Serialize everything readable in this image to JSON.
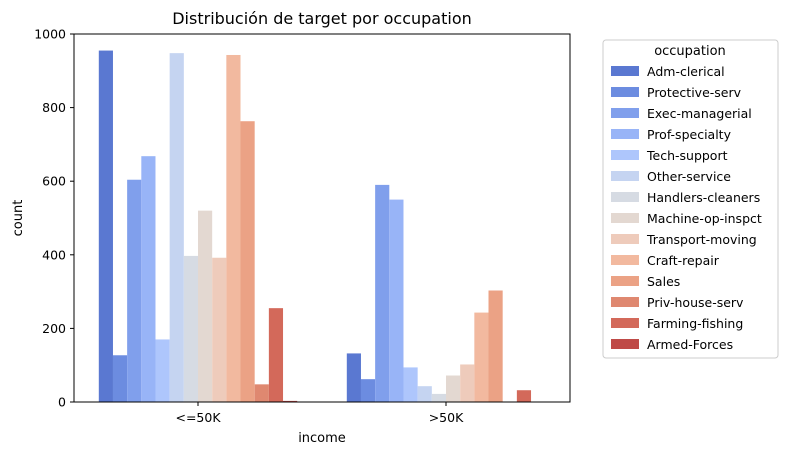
{
  "chart_data": {
    "type": "bar",
    "title": "Distribución de target por occupation",
    "xlabel": "income",
    "ylabel": "count",
    "categories": [
      "<=50K",
      ">50K"
    ],
    "ylim": [
      0,
      1000
    ],
    "yticks": [
      0,
      200,
      400,
      600,
      800,
      1000
    ],
    "grid": false,
    "legend": {
      "title": "occupation",
      "placement": "outside-right"
    },
    "series": [
      {
        "name": "Adm-clerical",
        "color": "#5a78d1",
        "values": [
          955,
          132
        ]
      },
      {
        "name": "Protective-serv",
        "color": "#6c8ce0",
        "values": [
          127,
          62
        ]
      },
      {
        "name": "Exec-managerial",
        "color": "#809fec",
        "values": [
          604,
          590
        ]
      },
      {
        "name": "Prof-specialty",
        "color": "#98b4f7",
        "values": [
          668,
          550
        ]
      },
      {
        "name": "Tech-support",
        "color": "#aec6fc",
        "values": [
          170,
          94
        ]
      },
      {
        "name": "Other-service",
        "color": "#c5d4f1",
        "values": [
          948,
          43
        ]
      },
      {
        "name": "Handlers-cleaners",
        "color": "#d6dbe3",
        "values": [
          397,
          22
        ]
      },
      {
        "name": "Machine-op-inspct",
        "color": "#e3d8d1",
        "values": [
          520,
          72
        ]
      },
      {
        "name": "Transport-moving",
        "color": "#eecbbb",
        "values": [
          392,
          102
        ]
      },
      {
        "name": "Craft-repair",
        "color": "#f2b99f",
        "values": [
          943,
          243
        ]
      },
      {
        "name": "Sales",
        "color": "#eba285",
        "values": [
          763,
          303
        ]
      },
      {
        "name": "Priv-house-serv",
        "color": "#df8870",
        "values": [
          48,
          0
        ]
      },
      {
        "name": "Farming-fishing",
        "color": "#d3695a",
        "values": [
          255,
          32
        ]
      },
      {
        "name": "Armed-Forces",
        "color": "#bf4a47",
        "values": [
          3,
          0
        ]
      }
    ]
  }
}
